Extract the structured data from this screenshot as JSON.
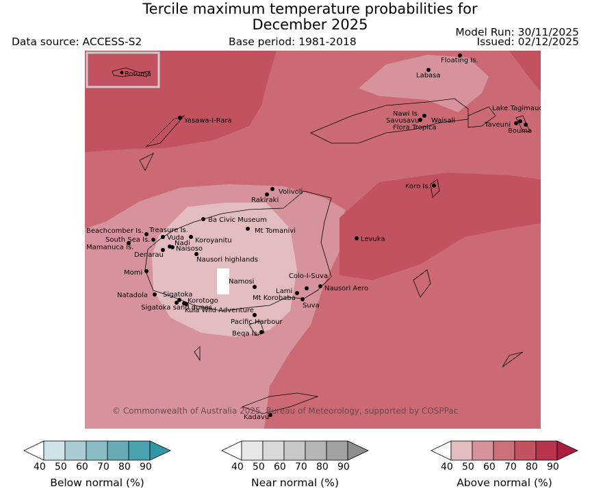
{
  "title": {
    "line1": "Tercile maximum temperature probabilities for",
    "line2": "December 2025"
  },
  "header": {
    "data_source": "Data source: ACCESS-S2",
    "base_period": "Base period: 1981-2018",
    "model_run": "Model Run: 30/11/2025",
    "issued": "Issued: 02/12/2025"
  },
  "map": {
    "inset_label": "Rotuma",
    "copyright": "© Commonwealth of Australia 2025, Bureau of Meteorology, supported by COSPPac",
    "colors": {
      "above_50": "#d9a2a8",
      "above_60": "#d3848c",
      "above_70": "#cb6a75",
      "above_80": "#c2525f",
      "above_90": "#b8334b",
      "near_40": "#e3bcc0"
    },
    "places": [
      "Floating Is.",
      "Labasa",
      "Yasawa-I-Rara",
      "Nawi Is.",
      "Savusavu",
      "Waisali",
      "Flora Tropica",
      "Lake Tagimaucia",
      "Taveuni",
      "Bouma",
      "Koro Is.",
      "Volivoli",
      "Rakiraki",
      "Ba Civic Museum",
      "Mt Tomanivi",
      "Levuka",
      "Beachcomber Is.",
      "Treasure Is.",
      "South Sea Is.",
      "Vuda",
      "Nadi",
      "Koroyanitu",
      "Mamanuca Is.",
      "Naisoso",
      "Denarau",
      "Nausori highlands",
      "Momi",
      "Namosi",
      "Colo-I-Suva",
      "Natadola",
      "Sigatoka",
      "Korotogo",
      "Lami",
      "Nausori Aero",
      "Mt Korobaba",
      "Suva",
      "Sigatoka sand dunes",
      "Kula Wild Adventure",
      "Pacific Harbour",
      "Beqa Is.",
      "Kadavu"
    ]
  },
  "legend": {
    "below": {
      "title": "Below normal (%)",
      "ticks": [
        "40",
        "50",
        "60",
        "70",
        "80",
        "90"
      ],
      "colors": [
        "#ffffff",
        "#cfe3e8",
        "#a9ccd2",
        "#8abcc4",
        "#68aab6",
        "#4aa1af",
        "#2f97a6"
      ]
    },
    "near": {
      "title": "Near normal (%)",
      "ticks": [
        "40",
        "50",
        "60",
        "70",
        "80",
        "90"
      ],
      "colors": [
        "#ffffff",
        "#e8e8e8",
        "#d9d9d9",
        "#c7c7c7",
        "#b5b5b5",
        "#a1a1a1",
        "#8d8d8d"
      ]
    },
    "above": {
      "title": "Above normal (%)",
      "ticks": [
        "40",
        "50",
        "60",
        "70",
        "80",
        "90"
      ],
      "colors": [
        "#ffffff",
        "#e3bcc0",
        "#d6939b",
        "#cb6f79",
        "#c2525f",
        "#b8334b",
        "#ad1e3e"
      ]
    }
  }
}
